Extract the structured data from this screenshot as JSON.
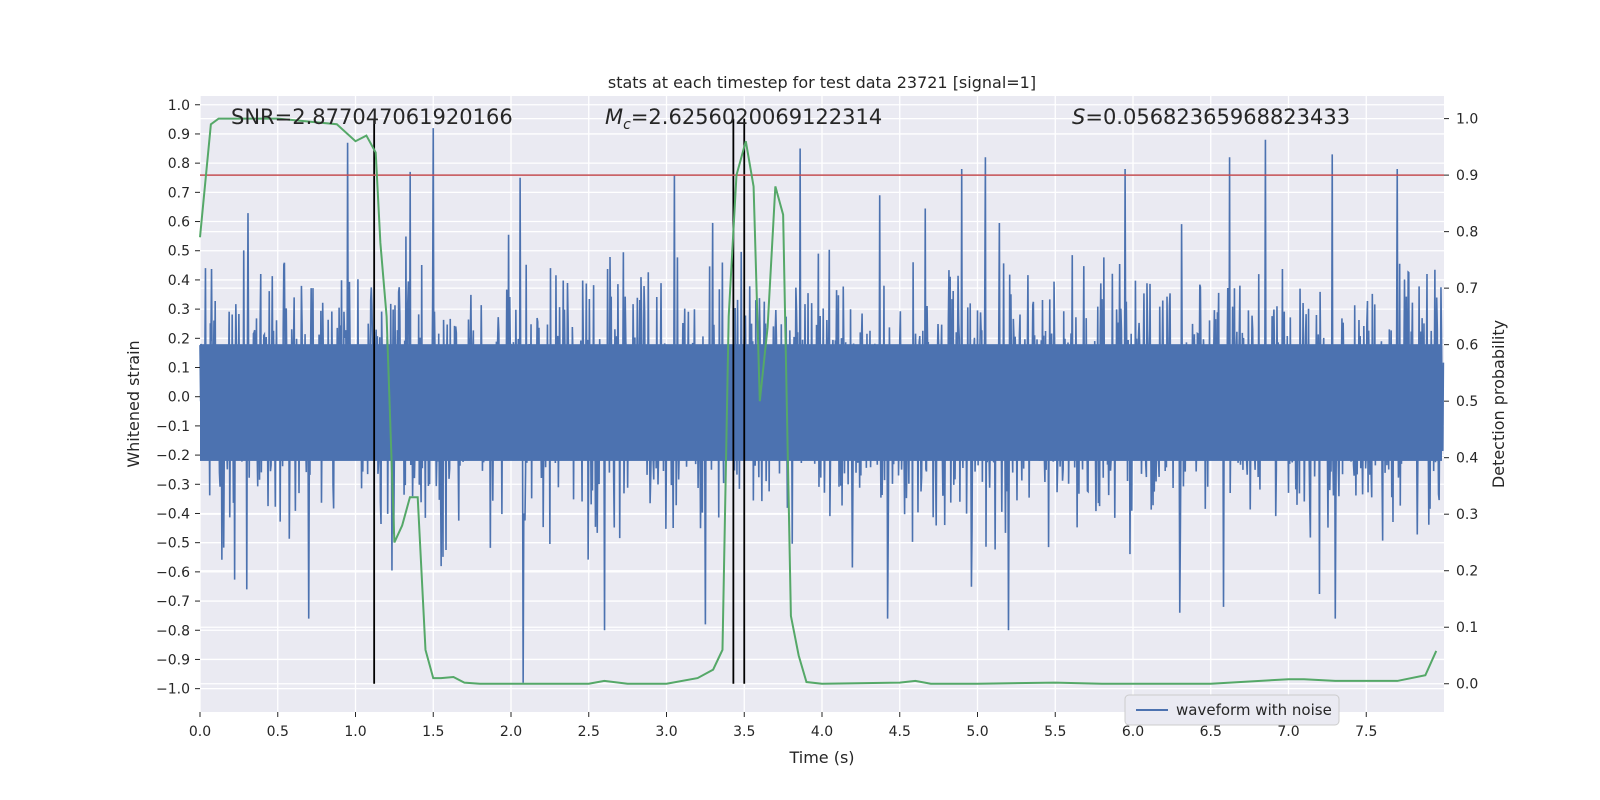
{
  "chart_data": {
    "type": "line",
    "title": "stats at each timestep for test data 23721 [signal=1]",
    "xlabel": "Time (s)",
    "ylabel": "Whitened strain",
    "ylabel_right": "Detection probability",
    "xlim": [
      0.0,
      8.0
    ],
    "ylim": [
      -1.08,
      1.03
    ],
    "ylim_right": [
      -0.05,
      1.04
    ],
    "xticks": [
      0.0,
      0.5,
      1.0,
      1.5,
      2.0,
      2.5,
      3.0,
      3.5,
      4.0,
      4.5,
      5.0,
      5.5,
      6.0,
      6.5,
      7.0,
      7.5
    ],
    "yticks": [
      -1.0,
      -0.9,
      -0.8,
      -0.7,
      -0.6,
      -0.5,
      -0.4,
      -0.3,
      -0.2,
      -0.1,
      0.0,
      0.1,
      0.2,
      0.3,
      0.4,
      0.5,
      0.6,
      0.7,
      0.8,
      0.9,
      1.0
    ],
    "yticks_right": [
      0.0,
      0.1,
      0.2,
      0.3,
      0.4,
      0.5,
      0.6,
      0.7,
      0.8,
      0.9,
      1.0
    ],
    "grid": true,
    "legend": {
      "label": "waveform with noise",
      "position": "lower-right"
    },
    "annotations": {
      "snr": "SNR=2.877047061920166",
      "mc_symbol": "M",
      "mc_sub": "c",
      "mc_value": "=2.6256020069122314",
      "s_symbol": "S",
      "s_value": "=0.05682365968823433"
    },
    "vertical_lines": [
      1.12,
      3.43,
      3.5
    ],
    "threshold": 0.9,
    "waveform": {
      "name": "waveform with noise",
      "color": "#4c72b0",
      "n_samples": 2048,
      "seed": 23721,
      "typical_amplitude": 0.38,
      "spikes": [
        {
          "t": 0.95,
          "v": 0.87
        },
        {
          "t": 1.5,
          "v": 0.92
        },
        {
          "t": 1.35,
          "v": 0.77
        },
        {
          "t": 2.06,
          "v": 0.75
        },
        {
          "t": 2.08,
          "v": -0.98
        },
        {
          "t": 2.6,
          "v": -0.8
        },
        {
          "t": 3.05,
          "v": 0.76
        },
        {
          "t": 3.25,
          "v": -0.78
        },
        {
          "t": 3.86,
          "v": 0.85
        },
        {
          "t": 5.05,
          "v": 0.82
        },
        {
          "t": 4.9,
          "v": 0.78
        },
        {
          "t": 5.2,
          "v": -0.8
        },
        {
          "t": 6.85,
          "v": 0.88
        },
        {
          "t": 6.62,
          "v": 0.82
        },
        {
          "t": 7.28,
          "v": 0.83
        },
        {
          "t": 7.3,
          "v": -0.76
        },
        {
          "t": 0.7,
          "v": -0.76
        },
        {
          "t": 0.3,
          "v": -0.66
        },
        {
          "t": 4.42,
          "v": -0.76
        },
        {
          "t": 6.3,
          "v": -0.74
        },
        {
          "t": 5.95,
          "v": 0.78
        },
        {
          "t": 7.7,
          "v": 0.78
        }
      ]
    },
    "probability": {
      "name": "detection probability",
      "color": "#55a868",
      "x": [
        0.0,
        0.07,
        0.12,
        0.2,
        0.5,
        0.88,
        1.0,
        1.07,
        1.13,
        1.16,
        1.2,
        1.25,
        1.3,
        1.35,
        1.4,
        1.45,
        1.5,
        1.55,
        1.63,
        1.7,
        1.8,
        2.0,
        2.2,
        2.4,
        2.5,
        2.6,
        2.75,
        3.0,
        3.2,
        3.3,
        3.36,
        3.4,
        3.45,
        3.51,
        3.56,
        3.6,
        3.65,
        3.7,
        3.75,
        3.8,
        3.85,
        3.9,
        4.0,
        4.5,
        4.6,
        4.7,
        5.0,
        5.5,
        5.8,
        6.0,
        6.5,
        7.0,
        7.1,
        7.3,
        7.7,
        7.88,
        7.95
      ],
      "y": [
        0.79,
        0.99,
        1.0,
        1.0,
        1.0,
        0.99,
        0.96,
        0.97,
        0.94,
        0.78,
        0.65,
        0.25,
        0.28,
        0.33,
        0.33,
        0.06,
        0.01,
        0.01,
        0.012,
        0.002,
        0.0,
        0.0,
        0.0,
        0.0,
        0.0,
        0.005,
        0.0,
        0.0,
        0.01,
        0.025,
        0.06,
        0.65,
        0.9,
        0.96,
        0.88,
        0.5,
        0.63,
        0.88,
        0.83,
        0.12,
        0.05,
        0.003,
        0.0,
        0.002,
        0.005,
        0.0,
        0.0,
        0.002,
        0.0,
        0.0,
        0.0,
        0.008,
        0.008,
        0.005,
        0.005,
        0.015,
        0.058
      ]
    },
    "colors": {
      "background": "#eaeaf2",
      "grid": "#ffffff",
      "threshold": "#c44e52",
      "vline": "#000000"
    }
  }
}
